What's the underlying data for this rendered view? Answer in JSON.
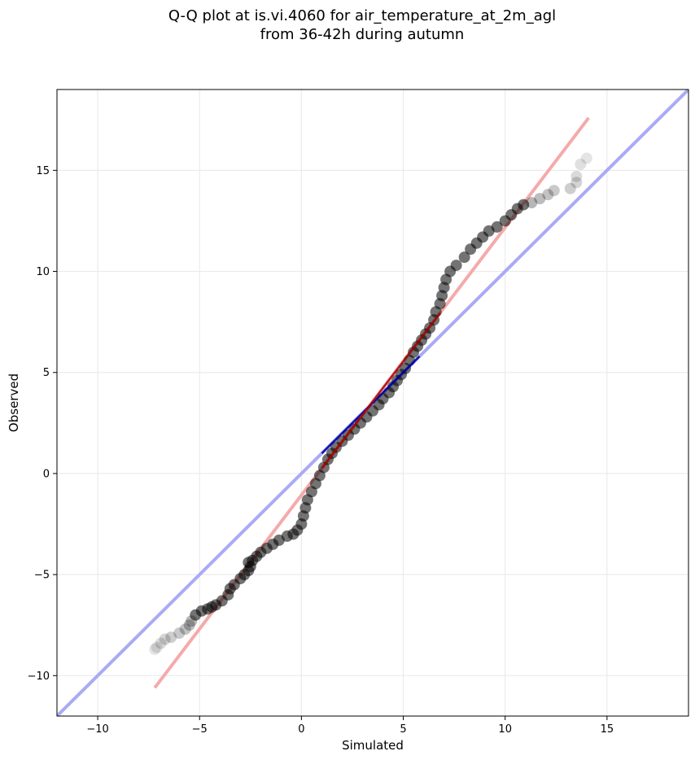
{
  "chart_data": {
    "type": "scatter",
    "title_lines": [
      "Q-Q plot at is.vi.4060 for air_temperature_at_2m_agl",
      "from 36-42h during autumn"
    ],
    "xlabel": "Simulated",
    "ylabel": "Observed",
    "xlim": [
      -12,
      19
    ],
    "ylim": [
      -12,
      19
    ],
    "xticks": [
      -10,
      -5,
      0,
      5,
      10,
      15
    ],
    "yticks": [
      -10,
      -5,
      0,
      5,
      10,
      15
    ],
    "xtick_labels": [
      "−10",
      "−5",
      "0",
      "5",
      "10",
      "15"
    ],
    "ytick_labels": [
      "−10",
      "−5",
      "0",
      "5",
      "10",
      "15"
    ],
    "grid": true,
    "colors": {
      "points": "#000000",
      "identity_line": "#aaaaf5",
      "fit_line": "#f5aaaa",
      "central_identity": "#0000aa",
      "central_fit": "#aa0000"
    },
    "series": [
      {
        "values": [
          [
            -7.2,
            -8.7
          ],
          [
            -7.1,
            -8.6
          ],
          [
            -6.9,
            -8.4
          ],
          [
            -6.7,
            -8.2
          ],
          [
            -6.4,
            -8.1
          ],
          [
            -6.0,
            -7.9
          ],
          [
            -5.7,
            -7.7
          ],
          [
            -5.5,
            -7.5
          ],
          [
            -5.4,
            -7.3
          ],
          [
            -5.2,
            -7.0
          ],
          [
            -4.9,
            -6.8
          ],
          [
            -4.6,
            -6.7
          ],
          [
            -4.4,
            -6.6
          ],
          [
            -4.2,
            -6.5
          ],
          [
            -3.9,
            -6.3
          ],
          [
            -3.6,
            -6.0
          ],
          [
            -3.5,
            -5.7
          ],
          [
            -3.3,
            -5.5
          ],
          [
            -3.0,
            -5.2
          ],
          [
            -2.8,
            -5.0
          ],
          [
            -2.6,
            -4.8
          ],
          [
            -2.5,
            -4.6
          ],
          [
            -2.6,
            -4.4
          ],
          [
            -2.4,
            -4.3
          ],
          [
            -2.2,
            -4.1
          ],
          [
            -2.0,
            -3.9
          ],
          [
            -1.7,
            -3.7
          ],
          [
            -1.4,
            -3.5
          ],
          [
            -1.1,
            -3.3
          ],
          [
            -0.7,
            -3.1
          ],
          [
            -0.4,
            -3.0
          ],
          [
            -0.2,
            -2.8
          ],
          [
            0.0,
            -2.5
          ],
          [
            0.1,
            -2.1
          ],
          [
            0.2,
            -1.7
          ],
          [
            0.3,
            -1.3
          ],
          [
            0.5,
            -0.9
          ],
          [
            0.7,
            -0.5
          ],
          [
            0.9,
            -0.1
          ],
          [
            1.1,
            0.3
          ],
          [
            1.3,
            0.7
          ],
          [
            1.5,
            1.0
          ],
          [
            1.7,
            1.3
          ],
          [
            2.0,
            1.6
          ],
          [
            2.3,
            1.9
          ],
          [
            2.6,
            2.2
          ],
          [
            2.9,
            2.5
          ],
          [
            3.2,
            2.8
          ],
          [
            3.5,
            3.1
          ],
          [
            3.8,
            3.4
          ],
          [
            4.0,
            3.7
          ],
          [
            4.3,
            4.0
          ],
          [
            4.5,
            4.3
          ],
          [
            4.7,
            4.6
          ],
          [
            4.9,
            4.9
          ],
          [
            5.1,
            5.2
          ],
          [
            5.3,
            5.6
          ],
          [
            5.5,
            6.0
          ],
          [
            5.7,
            6.3
          ],
          [
            5.9,
            6.6
          ],
          [
            6.1,
            6.9
          ],
          [
            6.3,
            7.2
          ],
          [
            6.5,
            7.6
          ],
          [
            6.6,
            8.0
          ],
          [
            6.8,
            8.4
          ],
          [
            6.9,
            8.8
          ],
          [
            7.0,
            9.2
          ],
          [
            7.1,
            9.6
          ],
          [
            7.3,
            10.0
          ],
          [
            7.6,
            10.3
          ],
          [
            8.0,
            10.7
          ],
          [
            8.3,
            11.1
          ],
          [
            8.6,
            11.4
          ],
          [
            8.9,
            11.7
          ],
          [
            9.2,
            12.0
          ],
          [
            9.6,
            12.2
          ],
          [
            10.0,
            12.5
          ],
          [
            10.3,
            12.8
          ],
          [
            10.6,
            13.1
          ],
          [
            10.9,
            13.3
          ],
          [
            11.3,
            13.4
          ],
          [
            11.7,
            13.6
          ],
          [
            12.1,
            13.8
          ],
          [
            12.4,
            14.0
          ],
          [
            13.2,
            14.1
          ],
          [
            13.5,
            14.4
          ],
          [
            13.5,
            14.7
          ],
          [
            13.7,
            15.3
          ],
          [
            14.0,
            15.6
          ]
        ]
      }
    ],
    "identity_line": {
      "x": [
        -12,
        19
      ],
      "y": [
        -12,
        19
      ]
    },
    "fit_line": {
      "x": [
        -7.2,
        14.1
      ],
      "y": [
        -10.6,
        17.6
      ]
    }
  }
}
